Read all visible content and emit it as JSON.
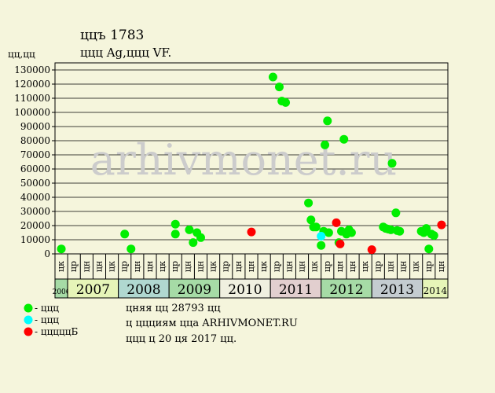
{
  "chart_data": {
    "type": "scatter",
    "title": "ццъ 1783",
    "subtitle": "ццц Ag,ццц VF.",
    "ylabel": "цц,цц",
    "ylim": [
      0,
      135000
    ],
    "yticks": [
      0,
      10000,
      20000,
      30000,
      40000,
      50000,
      60000,
      70000,
      80000,
      90000,
      100000,
      110000,
      120000,
      130000
    ],
    "grid": true,
    "watermark": "arhivmonet.ru",
    "period_labels": [
      "цк",
      "цр",
      "цн",
      "цн",
      "цк",
      "цр",
      "цн",
      "цн",
      "цк",
      "цр",
      "цн",
      "цн",
      "цк",
      "цр",
      "цн",
      "цн",
      "цк",
      "цр",
      "цн",
      "цн",
      "цк",
      "цр",
      "цн",
      "цн",
      "цк",
      "цр",
      "цн",
      "цн",
      "цк",
      "цр",
      "цн"
    ],
    "years": [
      {
        "label": "2006",
        "start": 0,
        "end": 1,
        "color": "#a6dba6"
      },
      {
        "label": "2007",
        "start": 1,
        "end": 5,
        "color": "#e6f5b8"
      },
      {
        "label": "2008",
        "start": 5,
        "end": 9,
        "color": "#b0d8d0"
      },
      {
        "label": "2009",
        "start": 9,
        "end": 13,
        "color": "#a6dba6"
      },
      {
        "label": "2010",
        "start": 13,
        "end": 17,
        "color": "#f0f0e0"
      },
      {
        "label": "2011",
        "start": 17,
        "end": 21,
        "color": "#e2cfcf"
      },
      {
        "label": "2012",
        "start": 21,
        "end": 25,
        "color": "#a6dba6"
      },
      {
        "label": "2013",
        "start": 25,
        "end": 29,
        "color": "#c4ccd0"
      },
      {
        "label": "2014",
        "start": 29,
        "end": 31,
        "color": "#e6f5b8"
      }
    ],
    "series": [
      {
        "name": "ццц",
        "color": "#00ee00",
        "points": [
          [
            0.5,
            3500
          ],
          [
            5.5,
            14000
          ],
          [
            6.0,
            3500
          ],
          [
            9.5,
            14000
          ],
          [
            9.5,
            21000
          ],
          [
            10.6,
            17000
          ],
          [
            10.9,
            8000
          ],
          [
            11.2,
            15000
          ],
          [
            11.5,
            11500
          ],
          [
            17.2,
            125000
          ],
          [
            17.7,
            118000
          ],
          [
            17.9,
            108000
          ],
          [
            18.2,
            107000
          ],
          [
            20.0,
            36000
          ],
          [
            20.2,
            24000
          ],
          [
            20.4,
            19000
          ],
          [
            20.6,
            19000
          ],
          [
            21.0,
            6000
          ],
          [
            21.2,
            16000
          ],
          [
            21.3,
            77000
          ],
          [
            21.5,
            94000
          ],
          [
            21.6,
            15000
          ],
          [
            22.4,
            8000
          ],
          [
            22.6,
            16000
          ],
          [
            22.8,
            81000
          ],
          [
            23.0,
            14000
          ],
          [
            23.2,
            17000
          ],
          [
            23.4,
            15000
          ],
          [
            25.9,
            19000
          ],
          [
            26.1,
            18000
          ],
          [
            26.3,
            17500
          ],
          [
            26.5,
            17000
          ],
          [
            26.6,
            64000
          ],
          [
            26.9,
            29000
          ],
          [
            27.0,
            16500
          ],
          [
            27.2,
            16000
          ],
          [
            28.9,
            16000
          ],
          [
            29.1,
            15000
          ],
          [
            29.3,
            18000
          ],
          [
            29.5,
            3500
          ],
          [
            29.7,
            14000
          ],
          [
            29.9,
            13000
          ]
        ]
      },
      {
        "name": "ццц",
        "color": "#00ffff",
        "points": [
          [
            21.0,
            12500
          ]
        ]
      },
      {
        "name": "цццццБ",
        "color": "#ff0000",
        "points": [
          [
            15.5,
            15500
          ],
          [
            22.2,
            22000
          ],
          [
            22.5,
            7000
          ],
          [
            25.0,
            3000
          ],
          [
            30.5,
            20500
          ]
        ]
      }
    ],
    "notes": [
      "цняя цц 28793 цц",
      "ц ццциям цца ARHIVMONET.RU",
      "ццц ц 20 ця 2017 цц."
    ]
  }
}
